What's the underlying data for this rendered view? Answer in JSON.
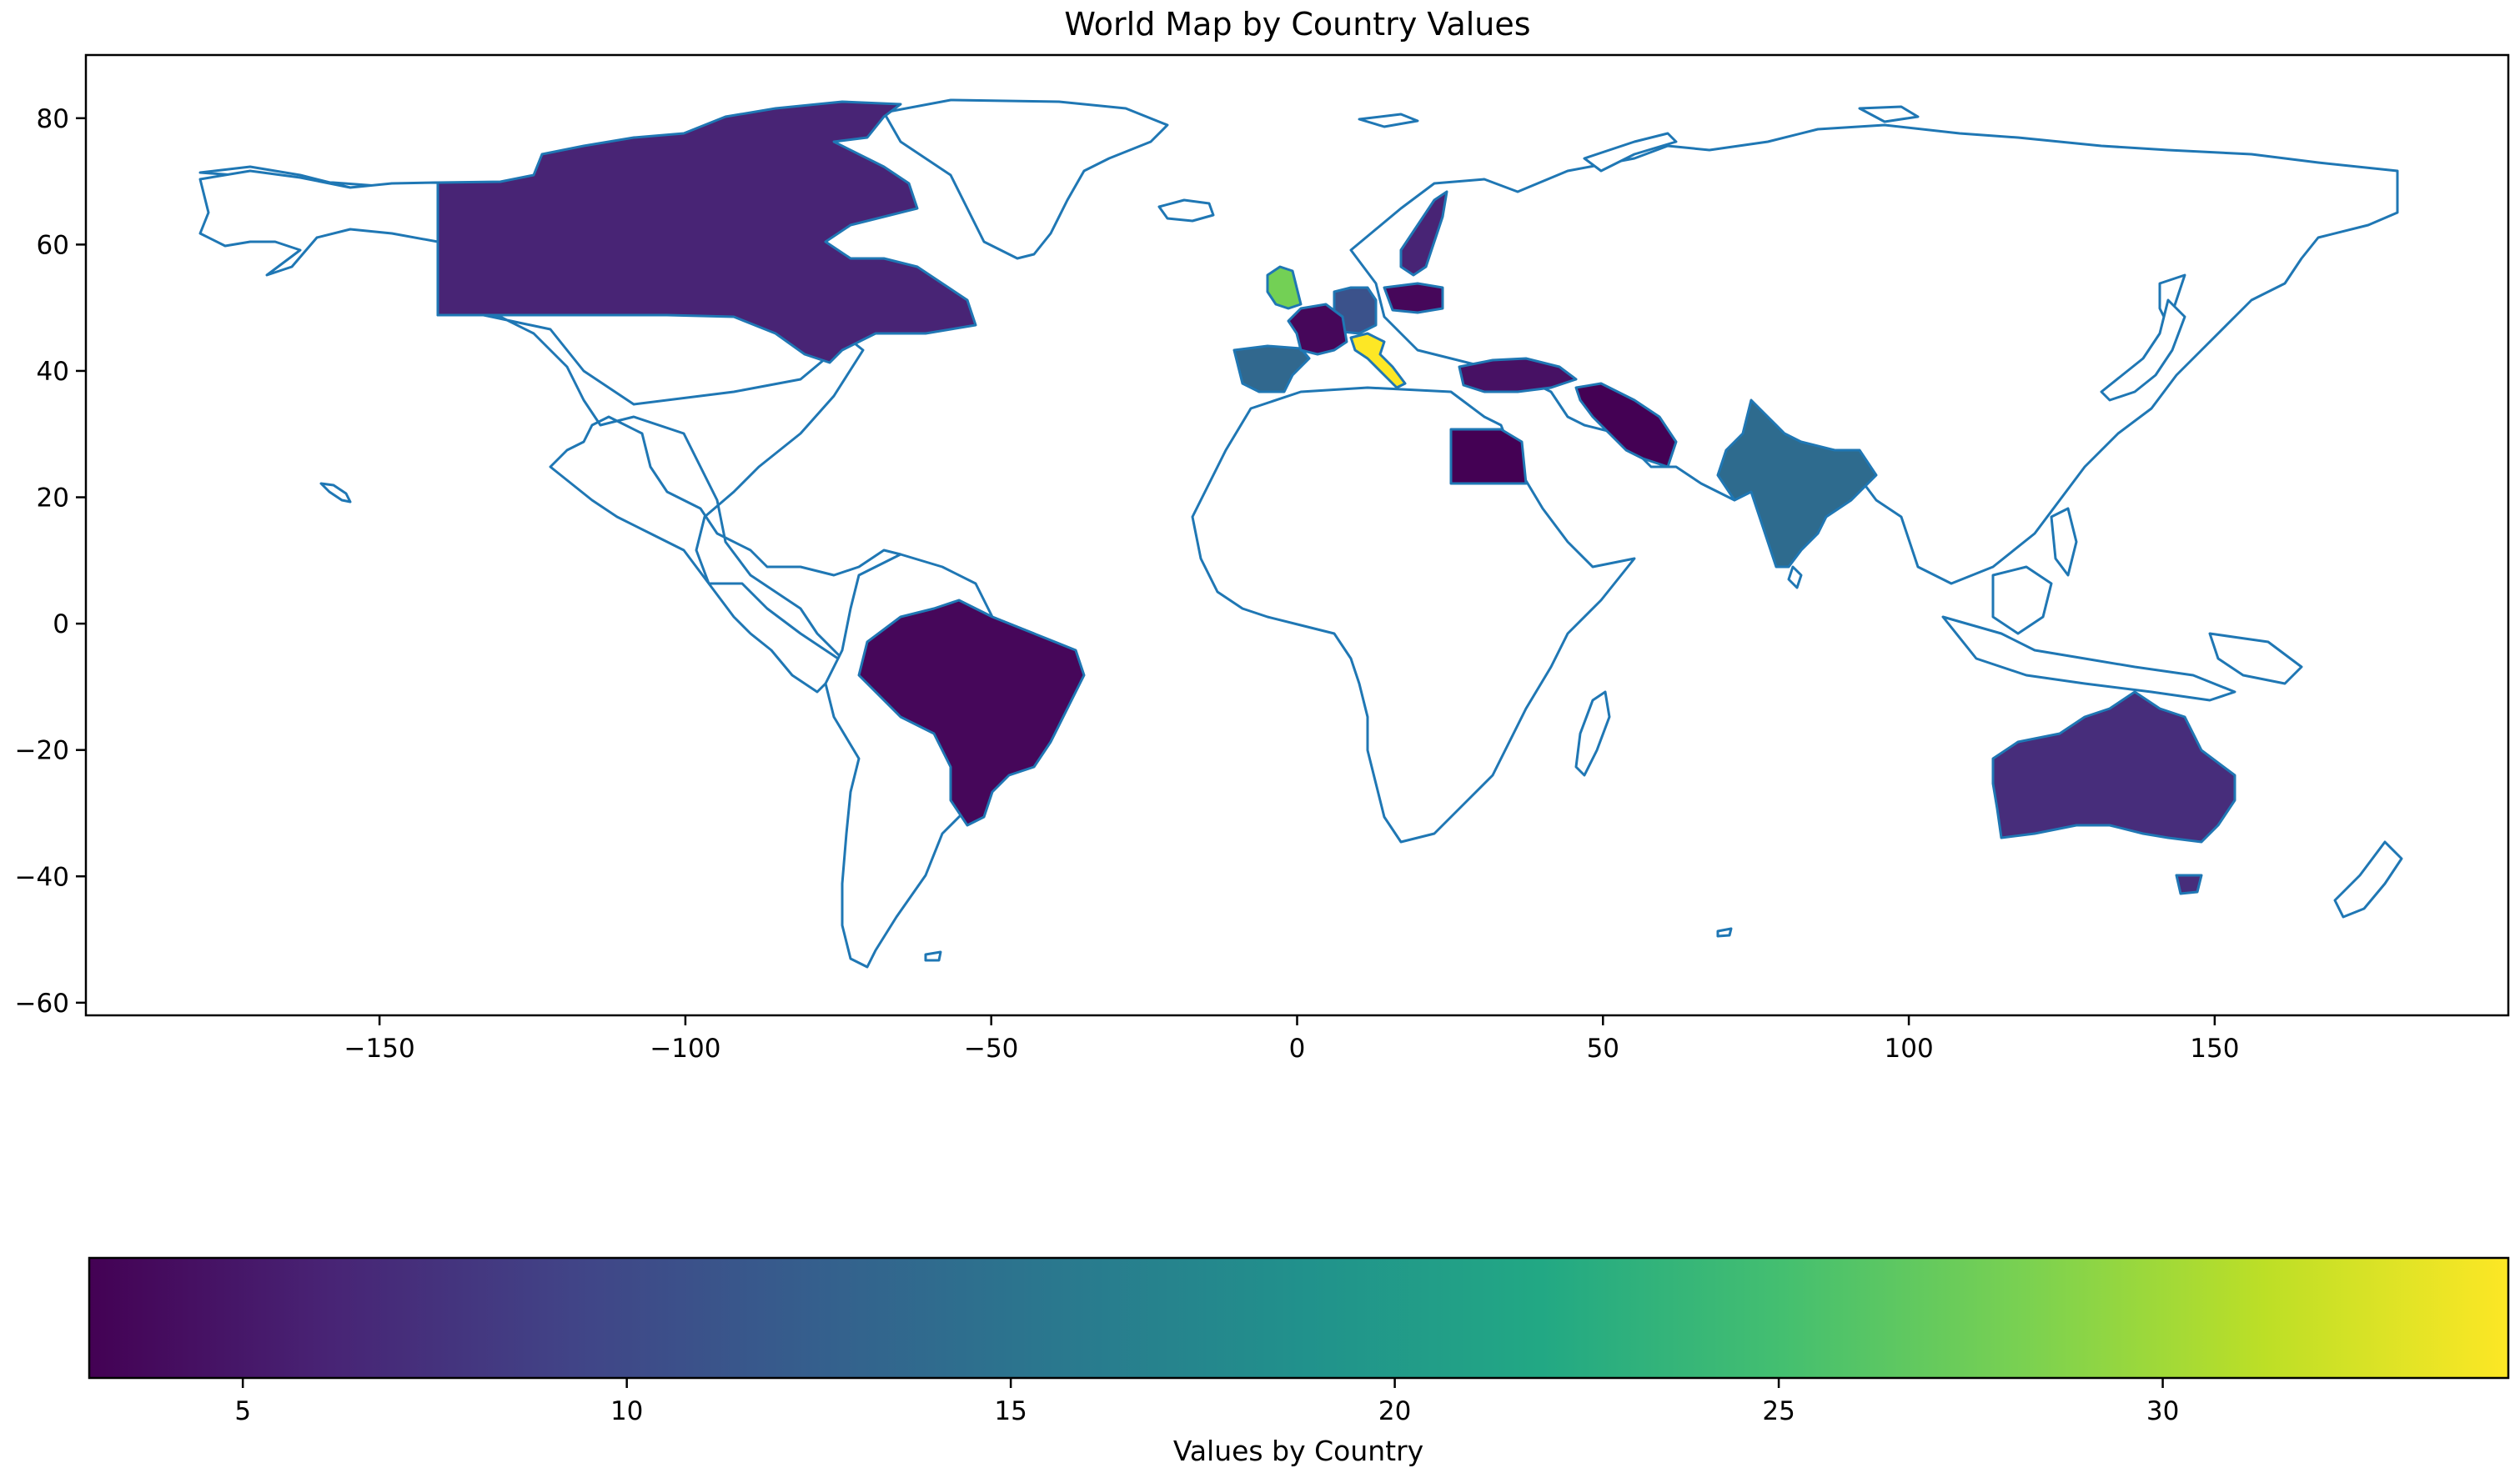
{
  "chart_data": {
    "type": "choropleth",
    "title": "World Map by Country Values",
    "x_axis": {
      "ticks": [
        -150,
        -100,
        -50,
        0,
        50,
        100,
        150
      ],
      "range": [
        -198,
        198
      ]
    },
    "y_axis": {
      "ticks": [
        80,
        60,
        40,
        20,
        0,
        -20,
        -40,
        -60
      ],
      "range": [
        -62,
        90
      ]
    },
    "colorbar": {
      "label": "Values by Country",
      "range": [
        3,
        34.5
      ],
      "ticks": [
        5,
        10,
        15,
        20,
        25,
        30
      ],
      "colormap": "viridis",
      "orientation": "horizontal"
    },
    "no_data_fill": "#ffffff",
    "boundary_color": "#1f77b4",
    "countries": [
      {
        "name": "Canada",
        "value": 6
      },
      {
        "name": "Brazil",
        "value": 3.5
      },
      {
        "name": "Australia",
        "value": 6
      },
      {
        "name": "India",
        "value": 13
      },
      {
        "name": "Spain",
        "value": 14
      },
      {
        "name": "Germany",
        "value": 12
      },
      {
        "name": "France",
        "value": 5
      },
      {
        "name": "Italy",
        "value": 34
      },
      {
        "name": "United Kingdom",
        "value": 26
      },
      {
        "name": "Sweden",
        "value": 5
      },
      {
        "name": "Poland",
        "value": 4
      },
      {
        "name": "Turkey",
        "value": 4.5
      },
      {
        "name": "Iran",
        "value": 3.5
      },
      {
        "name": "Egypt",
        "value": 3
      }
    ]
  }
}
